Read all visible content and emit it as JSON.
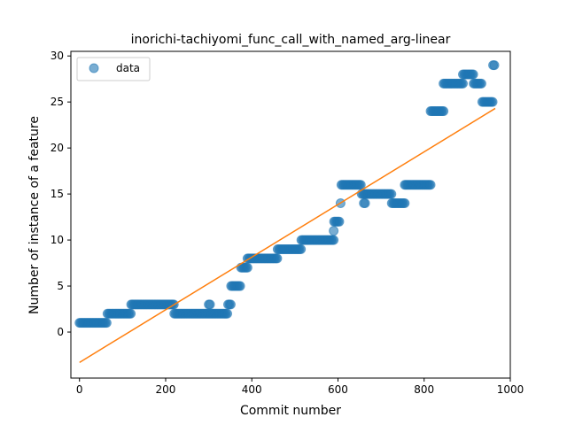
{
  "chart_data": {
    "type": "scatter",
    "title": "inorichi-tachiyomi_func_call_with_named_arg-linear",
    "xlabel": "Commit number",
    "ylabel": "Number of instance of a feature",
    "xlim": [
      -20,
      1000
    ],
    "ylim": [
      -5,
      30.5
    ],
    "xticks": [
      0,
      200,
      400,
      600,
      800,
      1000
    ],
    "yticks": [
      0,
      5,
      10,
      15,
      20,
      25,
      30
    ],
    "grid": false,
    "legend": {
      "placement": "top-left",
      "entries": [
        "data"
      ]
    },
    "colors": {
      "points": "#1f77b4",
      "fit": "#ff7f0e"
    },
    "series": [
      {
        "name": "data",
        "segments": [
          {
            "x_start": 0,
            "x_end": 65,
            "y": 1
          },
          {
            "x_start": 65,
            "x_end": 120,
            "y": 2
          },
          {
            "x_start": 120,
            "x_end": 220,
            "y": 3
          },
          {
            "x_start": 220,
            "x_end": 345,
            "y": 2
          },
          {
            "x_start": 300,
            "x_end": 303,
            "y": 3
          },
          {
            "x_start": 345,
            "x_end": 352,
            "y": 3
          },
          {
            "x_start": 352,
            "x_end": 375,
            "y": 5
          },
          {
            "x_start": 375,
            "x_end": 390,
            "y": 7
          },
          {
            "x_start": 390,
            "x_end": 460,
            "y": 8
          },
          {
            "x_start": 460,
            "x_end": 515,
            "y": 9
          },
          {
            "x_start": 515,
            "x_end": 590,
            "y": 10
          },
          {
            "x_start": 590,
            "x_end": 591,
            "y": 11
          },
          {
            "x_start": 591,
            "x_end": 603,
            "y": 12
          },
          {
            "x_start": 606,
            "x_end": 607,
            "y": 14
          },
          {
            "x_start": 608,
            "x_end": 655,
            "y": 16
          },
          {
            "x_start": 655,
            "x_end": 725,
            "y": 15
          },
          {
            "x_start": 660,
            "x_end": 665,
            "y": 14
          },
          {
            "x_start": 725,
            "x_end": 755,
            "y": 14
          },
          {
            "x_start": 755,
            "x_end": 815,
            "y": 16
          },
          {
            "x_start": 815,
            "x_end": 845,
            "y": 24
          },
          {
            "x_start": 845,
            "x_end": 890,
            "y": 27
          },
          {
            "x_start": 890,
            "x_end": 915,
            "y": 28
          },
          {
            "x_start": 915,
            "x_end": 935,
            "y": 27
          },
          {
            "x_start": 935,
            "x_end": 960,
            "y": 25
          },
          {
            "x_start": 960,
            "x_end": 965,
            "y": 29
          }
        ]
      },
      {
        "name": "",
        "type": "line",
        "x": [
          0,
          965
        ],
        "y": [
          -3.3,
          24.3
        ]
      }
    ]
  }
}
